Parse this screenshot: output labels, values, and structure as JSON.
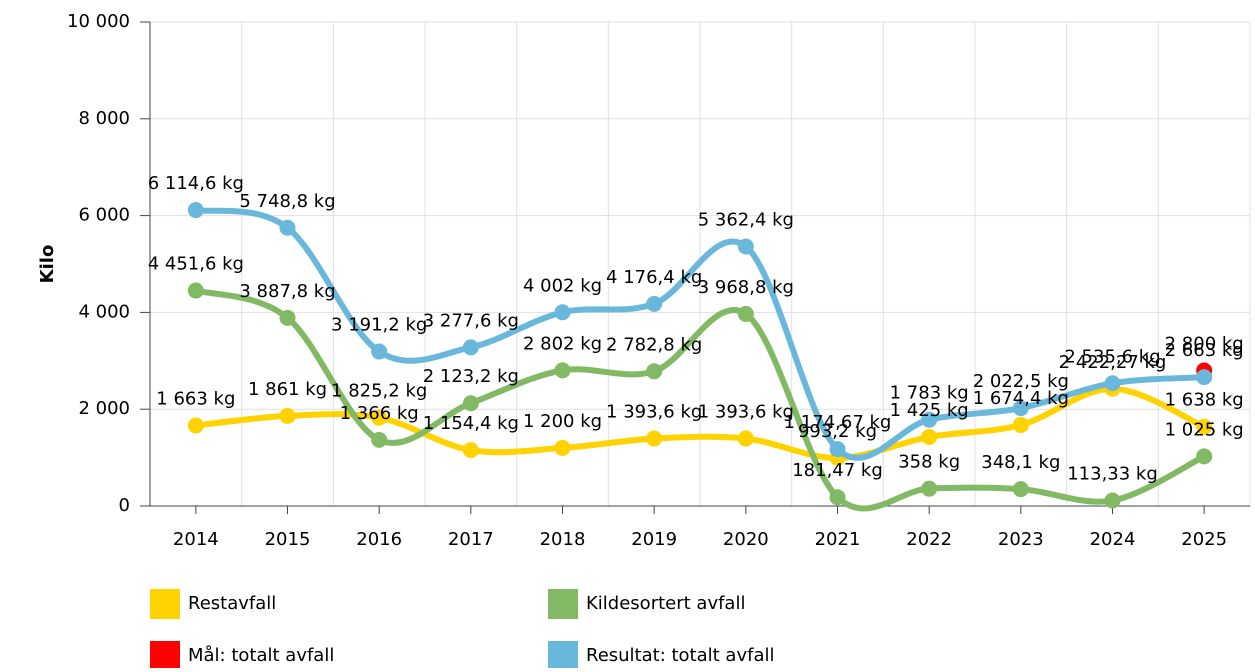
{
  "chart_data": {
    "type": "line",
    "y_label": "Kilo",
    "categories": [
      "2014",
      "2015",
      "2016",
      "2017",
      "2018",
      "2019",
      "2020",
      "2021",
      "2022",
      "2023",
      "2024",
      "2025"
    ],
    "ylim": [
      0,
      10000
    ],
    "yticks": [
      0,
      {
        "value": 2000,
        "label": "2 000"
      },
      {
        "value": 4000,
        "label": "4 000"
      },
      {
        "value": 6000,
        "label": "6 000"
      },
      {
        "value": 8000,
        "label": "8 000"
      },
      {
        "value": 10000,
        "label": "10 000"
      }
    ],
    "grid": true,
    "smooth": true,
    "series": [
      {
        "name": "Restavfall",
        "color": "#FFD200",
        "values": [
          1663,
          1861,
          1825.2,
          1154.4,
          1200,
          1393.6,
          1393.6,
          993.2,
          1425,
          1674.4,
          2422.27,
          1638
        ],
        "value_labels": [
          "1 663 kg",
          "1 861 kg",
          "1 825,2 kg",
          "1 154,4 kg",
          "1 200 kg",
          "1 393,6 kg",
          "1 393,6 kg",
          "993,2 kg",
          "1 425 kg",
          "1 674,4 kg",
          "2 422,27 kg",
          "1 638 kg"
        ]
      },
      {
        "name": "Kildesortert avfall",
        "color": "#82B964",
        "values": [
          4451.6,
          3887.8,
          1366,
          2123.2,
          2802,
          2782.8,
          3968.8,
          181.47,
          358,
          348.1,
          113.33,
          1025
        ],
        "value_labels": [
          "4 451,6 kg",
          "3 887,8 kg",
          "1 366 kg",
          "2 123,2 kg",
          "2 802 kg",
          "2 782,8 kg",
          "3 968,8 kg",
          "181,47 kg",
          "358 kg",
          "348,1 kg",
          "113,33 kg",
          "1 025 kg"
        ]
      },
      {
        "name": "Mål: totalt avfall",
        "color": "#FF0000",
        "values": [
          null,
          null,
          null,
          null,
          null,
          null,
          null,
          null,
          null,
          null,
          null,
          2800
        ],
        "value_labels": [
          null,
          null,
          null,
          null,
          null,
          null,
          null,
          null,
          null,
          null,
          null,
          "2 800 kg"
        ]
      },
      {
        "name": "Resultat: totalt avfall",
        "color": "#69B8DC",
        "values": [
          6114.6,
          5748.8,
          3191.2,
          3277.6,
          4002,
          4176.4,
          5362.4,
          1174.67,
          1783,
          2022.5,
          2535.6,
          2663
        ],
        "value_labels": [
          "6 114,6 kg",
          "5 748,8 kg",
          "3 191,2 kg",
          "3 277,6 kg",
          "4 002 kg",
          "4 176,4 kg",
          "5 362,4 kg",
          "1 174,67 kg",
          "1 783 kg",
          "2 022,5 kg",
          "2 535,6 kg",
          "2 663 kg"
        ]
      }
    ]
  }
}
